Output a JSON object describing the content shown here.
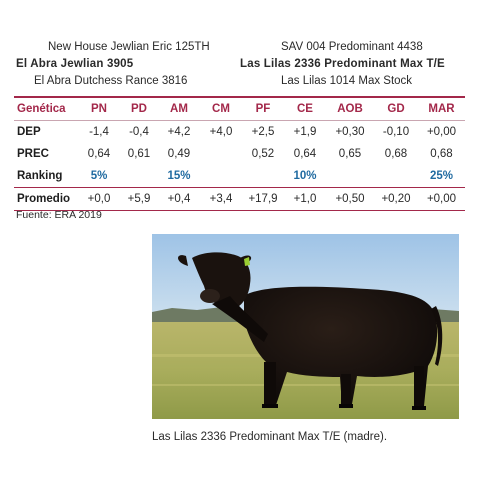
{
  "pedigree": {
    "sire_sire": "New House Jewlian Eric 125TH",
    "sire": "El Abra Jewlian 3905",
    "sire_dam": "El Abra Dutchess Rance 3816",
    "dam_sire": "SAV 004 Predominant 4438",
    "dam": "Las Lilas 2336 Predominant Max T/E",
    "dam_dam": "Las Lilas 1014 Max Stock"
  },
  "table": {
    "corner": "Genética",
    "columns": [
      "PN",
      "PD",
      "AM",
      "CM",
      "PF",
      "CE",
      "AOB",
      "GD",
      "MAR"
    ],
    "rows": [
      {
        "label": "DEP",
        "values": [
          "-1,4",
          "-0,4",
          "+4,2",
          "+4,0",
          "+2,5",
          "+1,9",
          "+0,30",
          "-0,10",
          "+0,00"
        ]
      },
      {
        "label": "PREC",
        "values": [
          "0,64",
          "0,61",
          "0,49",
          "",
          "0,52",
          "0,64",
          "0,65",
          "0,68",
          "0,68"
        ]
      },
      {
        "label": "Ranking",
        "values": [
          "5%",
          "",
          "15%",
          "",
          "",
          "10%",
          "",
          "",
          "25%"
        ]
      },
      {
        "label": "Promedio",
        "values": [
          "+0,0",
          "+5,9",
          "+0,4",
          "+3,4",
          "+17,9",
          "+1,0",
          "+0,50",
          "+0,20",
          "+0,00"
        ]
      }
    ]
  },
  "source": "Fuente: ERA 2019",
  "photo": {
    "subject": "black-angus-cow",
    "ear_tag_color": "#9acd32"
  },
  "caption": "Las Lilas 2336 Predominant Max T/E (madre).",
  "colors": {
    "accent": "#a3284a",
    "ranking": "#1f6aa0"
  }
}
